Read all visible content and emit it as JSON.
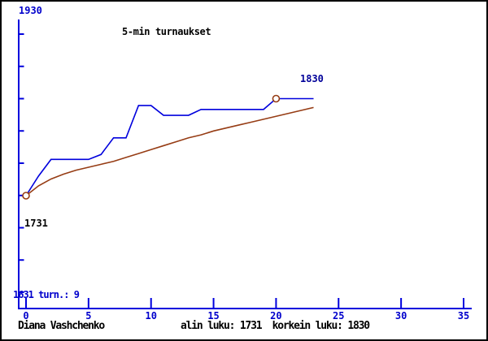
{
  "title": "5-min turnaukset",
  "player": "Diana Vashchenko",
  "footer_stats": "alin luku: 1731  korkein luku: 1830",
  "labels": {
    "y_max": "1930",
    "peak": "1830",
    "start": "1731",
    "bottom_left": "1631 turn.: 9"
  },
  "stats": {
    "lowest_rating": 1731,
    "highest_rating": 1830,
    "tournaments": 9
  },
  "colors": {
    "axis": "#0000dd",
    "blue_text": "#0000cc",
    "peak_label": "#000099",
    "rating_line": "#0000dd",
    "trend_line": "#963c14",
    "marker": "#963c14",
    "text": "#000000",
    "background": "#ffffff"
  },
  "chart_data": {
    "type": "line",
    "title": "5-min turnaukset",
    "xlabel": "",
    "ylabel": "",
    "xlim": [
      0,
      35
    ],
    "ylim": [
      1631,
      1930
    ],
    "x_ticks": [
      0,
      5,
      10,
      15,
      20,
      25,
      30,
      35
    ],
    "y_tick_count": 9,
    "y_axis_top_label": "1930",
    "y_axis_bottom_label": "1631",
    "grid": false,
    "legend": "none",
    "x": [
      0,
      1,
      2,
      3,
      4,
      5,
      6,
      7,
      8,
      9,
      10,
      11,
      12,
      13,
      14,
      15,
      16,
      17,
      18,
      19,
      20,
      21,
      22,
      23
    ],
    "series": [
      {
        "name": "rating",
        "color": "#0000dd",
        "values": [
          1731,
          1751,
          1768,
          1768,
          1768,
          1768,
          1773,
          1790,
          1790,
          1823,
          1823,
          1813,
          1813,
          1813,
          1819,
          1819,
          1819,
          1819,
          1819,
          1819,
          1830,
          1830,
          1830,
          1830
        ]
      },
      {
        "name": "trend",
        "color": "#963c14",
        "values": [
          1731,
          1741,
          1748,
          1753,
          1757,
          1760,
          1763,
          1766,
          1770,
          1774,
          1778,
          1782,
          1786,
          1790,
          1793,
          1797,
          1800,
          1803,
          1806,
          1809,
          1812,
          1815,
          1818,
          1821
        ]
      }
    ],
    "markers": [
      {
        "x": 0,
        "y": 1731,
        "label": "1731"
      },
      {
        "x": 20,
        "y": 1830,
        "label": "1830"
      }
    ],
    "annotations": [
      {
        "text": "1830",
        "near": "peak marker"
      },
      {
        "text": "1731",
        "near": "start marker"
      },
      {
        "text": "1631 turn.: 9",
        "near": "bottom left of y-axis"
      }
    ]
  }
}
